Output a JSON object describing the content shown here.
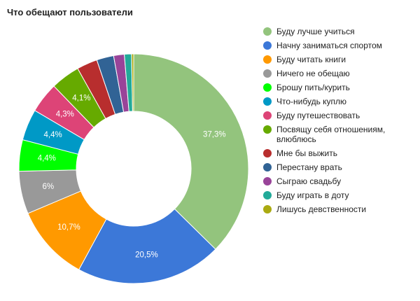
{
  "chart_data": {
    "type": "pie",
    "title": "Что обещают пользователи",
    "donut": true,
    "legend_position": "right",
    "slices": [
      {
        "label": "Буду лучше учиться",
        "value": 37.3,
        "color": "#93c47d",
        "value_label": "37,3%"
      },
      {
        "label": "Начну заниматься спортом",
        "value": 20.5,
        "color": "#3c78d8",
        "value_label": "20,5%"
      },
      {
        "label": "Буду читать книги",
        "value": 10.7,
        "color": "#ff9900",
        "value_label": "10,7%"
      },
      {
        "label": "Ничего не обещаю",
        "value": 6.0,
        "color": "#999999",
        "value_label": "6%"
      },
      {
        "label": "Брошу пить/курить",
        "value": 4.4,
        "color": "#00ff00",
        "value_label": "4,4%"
      },
      {
        "label": "Что-нибудь куплю",
        "value": 4.4,
        "color": "#0099c6",
        "value_label": "4,4%"
      },
      {
        "label": "Буду путешествовать",
        "value": 4.3,
        "color": "#dd4477",
        "value_label": "4,3%"
      },
      {
        "label": "Посвящу себя отношениям, влюблюсь",
        "value": 4.1,
        "color": "#66aa00",
        "value_label": "4,1%"
      },
      {
        "label": "Мне бы выжить",
        "value": 2.9,
        "color": "#b82e2e",
        "value_label": ""
      },
      {
        "label": "Перестану врать",
        "value": 2.4,
        "color": "#316395",
        "value_label": ""
      },
      {
        "label": "Сыграю свадьбу",
        "value": 1.5,
        "color": "#994499",
        "value_label": ""
      },
      {
        "label": "Буду играть в доту",
        "value": 1.0,
        "color": "#22aa99",
        "value_label": ""
      },
      {
        "label": "Лишусь девственности",
        "value": 0.3,
        "color": "#aaaa11",
        "value_label": ""
      }
    ]
  }
}
